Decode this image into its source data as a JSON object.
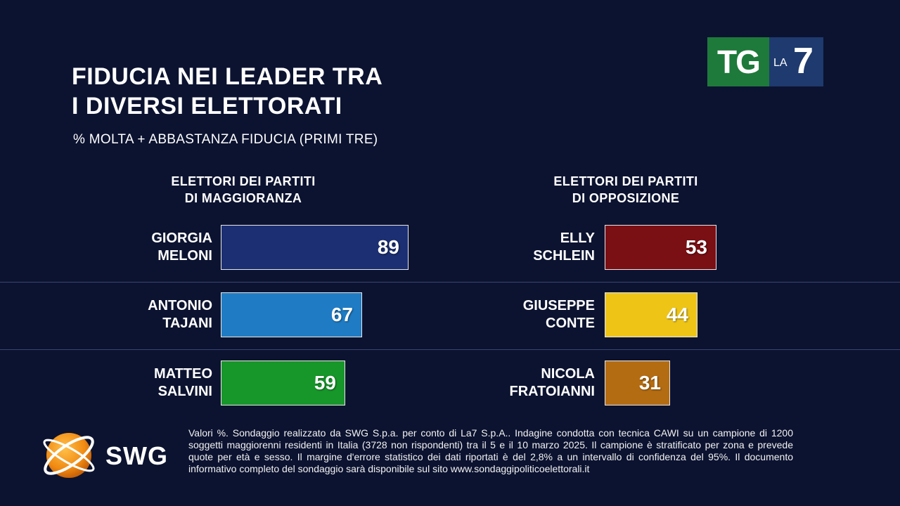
{
  "title": {
    "line1": "FIDUCIA NEI LEADER TRA",
    "line2": "I DIVERSI ELETTORATI"
  },
  "subtitle": "% MOLTA + ABBASTANZA FIDUCIA (PRIMI TRE)",
  "logos": {
    "tg": "TG",
    "la": "LA",
    "seven": "7",
    "swg": "SWG"
  },
  "footnote": "Valori %. Sondaggio realizzato da SWG S.p.a. per conto di La7 S.p.A.. Indagine condotta con tecnica CAWI su un campione di 1200 soggetti maggiorenni residenti in Italia (3728 non rispondenti) tra il 5 e il 10 marzo 2025. Il campione è stratificato per zona e prevede quote per età e sesso. Il margine d'errore statistico dei dati riportati è del 2,8% a un intervallo di confidenza del 95%. Il documento informativo completo del sondaggio sarà disponibile sul sito www.sondaggipoliticoelettorali.it",
  "chart_data": [
    {
      "type": "bar",
      "orientation": "horizontal",
      "title": "FIDUCIA NEI LEADER TRA I DIVERSI ELETTORATI",
      "subtitle": "% MOLTA + ABBASTANZA FIDUCIA (PRIMI TRE)",
      "group_label": {
        "line1": "ELETTORI DEI PARTITI",
        "line2": "DI MAGGIORANZA"
      },
      "categories": [
        {
          "line1": "GIORGIA",
          "line2": "MELONI"
        },
        {
          "line1": "ANTONIO",
          "line2": "TAJANI"
        },
        {
          "line1": "MATTEO",
          "line2": "SALVINI"
        }
      ],
      "values": [
        89,
        67,
        59
      ],
      "colors": [
        "#1b2f72",
        "#1f7cc4",
        "#17962a"
      ],
      "xlim": [
        0,
        100
      ]
    },
    {
      "type": "bar",
      "orientation": "horizontal",
      "title": "FIDUCIA NEI LEADER TRA I DIVERSI ELETTORATI",
      "subtitle": "% MOLTA + ABBASTANZA FIDUCIA (PRIMI TRE)",
      "group_label": {
        "line1": "ELETTORI DEI PARTITI",
        "line2": "DI OPPOSIZIONE"
      },
      "categories": [
        {
          "line1": "ELLY",
          "line2": "SCHLEIN"
        },
        {
          "line1": "GIUSEPPE",
          "line2": "CONTE"
        },
        {
          "line1": "NICOLA",
          "line2": "FRATOIANNI"
        }
      ],
      "values": [
        53,
        44,
        31
      ],
      "colors": [
        "#7a0f14",
        "#eec517",
        "#b46c12"
      ],
      "xlim": [
        0,
        100
      ]
    }
  ]
}
